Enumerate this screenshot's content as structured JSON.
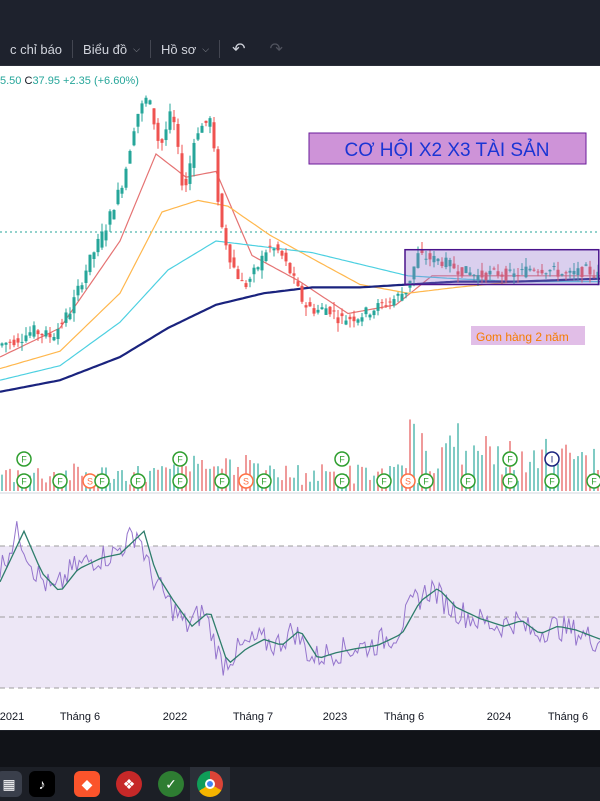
{
  "toolbar": {
    "items": [
      {
        "label": "c chỉ báo",
        "chevron": false
      },
      {
        "label": "Biểu đồ",
        "chevron": true
      },
      {
        "label": "Hồ sơ",
        "chevron": true
      }
    ],
    "undo_icon": "undo-icon",
    "redo_icon": "redo-icon"
  },
  "legend": {
    "prefix": "5.50",
    "close_label": "C",
    "close": "37.95",
    "change": "+2.35",
    "change_pct": "(+6.60%)"
  },
  "annotations": {
    "title_box": "CƠ HỘI X2 X3 TÀI SẢN",
    "accumulation_label": "Gom hàng 2 năm",
    "accumulation_range": [
      0.675,
      0.998
    ],
    "accumulation_price": [
      0.35,
      0.47
    ]
  },
  "chart_data": {
    "type": "candlestick",
    "x_ticks": [
      "2021",
      "Tháng 6",
      "2022",
      "Tháng 7",
      "2023",
      "Tháng 6",
      "2024",
      "Tháng 6"
    ],
    "price_path": [
      [
        0.0,
        0.14
      ],
      [
        0.03,
        0.16
      ],
      [
        0.06,
        0.19
      ],
      [
        0.09,
        0.17
      ],
      [
        0.12,
        0.26
      ],
      [
        0.15,
        0.42
      ],
      [
        0.18,
        0.55
      ],
      [
        0.21,
        0.72
      ],
      [
        0.23,
        0.93
      ],
      [
        0.25,
        1.0
      ],
      [
        0.27,
        0.82
      ],
      [
        0.29,
        0.95
      ],
      [
        0.31,
        0.66
      ],
      [
        0.33,
        0.88
      ],
      [
        0.355,
        0.92
      ],
      [
        0.37,
        0.57
      ],
      [
        0.39,
        0.42
      ],
      [
        0.41,
        0.34
      ],
      [
        0.43,
        0.4
      ],
      [
        0.45,
        0.48
      ],
      [
        0.47,
        0.46
      ],
      [
        0.49,
        0.38
      ],
      [
        0.51,
        0.28
      ],
      [
        0.53,
        0.26
      ],
      [
        0.55,
        0.27
      ],
      [
        0.57,
        0.23
      ],
      [
        0.6,
        0.24
      ],
      [
        0.63,
        0.27
      ],
      [
        0.66,
        0.3
      ],
      [
        0.68,
        0.33
      ],
      [
        0.7,
        0.45
      ],
      [
        0.72,
        0.44
      ],
      [
        0.74,
        0.43
      ],
      [
        0.77,
        0.4
      ],
      [
        0.8,
        0.38
      ],
      [
        0.83,
        0.39
      ],
      [
        0.86,
        0.38
      ],
      [
        0.89,
        0.41
      ],
      [
        0.92,
        0.4
      ],
      [
        0.95,
        0.38
      ],
      [
        0.98,
        0.4
      ],
      [
        1.0,
        0.38
      ]
    ],
    "ma_series": [
      {
        "color": "#e57373",
        "path": [
          [
            0.0,
            0.1
          ],
          [
            0.1,
            0.2
          ],
          [
            0.2,
            0.5
          ],
          [
            0.26,
            0.8
          ],
          [
            0.31,
            0.72
          ],
          [
            0.36,
            0.74
          ],
          [
            0.42,
            0.45
          ],
          [
            0.5,
            0.36
          ],
          [
            0.58,
            0.25
          ],
          [
            0.66,
            0.28
          ],
          [
            0.72,
            0.38
          ],
          [
            0.8,
            0.38
          ],
          [
            0.9,
            0.38
          ],
          [
            1.0,
            0.38
          ]
        ]
      },
      {
        "color": "#ffb74d",
        "path": [
          [
            0.0,
            0.06
          ],
          [
            0.1,
            0.12
          ],
          [
            0.2,
            0.32
          ],
          [
            0.27,
            0.6
          ],
          [
            0.33,
            0.64
          ],
          [
            0.38,
            0.62
          ],
          [
            0.45,
            0.52
          ],
          [
            0.52,
            0.44
          ],
          [
            0.6,
            0.35
          ],
          [
            0.68,
            0.32
          ],
          [
            0.76,
            0.34
          ],
          [
            0.86,
            0.36
          ],
          [
            1.0,
            0.37
          ]
        ]
      },
      {
        "color": "#4dd0e1",
        "path": [
          [
            0.0,
            0.02
          ],
          [
            0.1,
            0.07
          ],
          [
            0.2,
            0.22
          ],
          [
            0.28,
            0.4
          ],
          [
            0.36,
            0.5
          ],
          [
            0.44,
            0.48
          ],
          [
            0.52,
            0.46
          ],
          [
            0.6,
            0.42
          ],
          [
            0.68,
            0.38
          ],
          [
            0.76,
            0.37
          ],
          [
            0.86,
            0.36
          ],
          [
            1.0,
            0.36
          ]
        ]
      },
      {
        "color": "#1a237e",
        "path": [
          [
            0.0,
            -0.02
          ],
          [
            0.1,
            0.02
          ],
          [
            0.2,
            0.1
          ],
          [
            0.28,
            0.2
          ],
          [
            0.36,
            0.28
          ],
          [
            0.44,
            0.32
          ],
          [
            0.52,
            0.34
          ],
          [
            0.6,
            0.34
          ],
          [
            0.68,
            0.35
          ],
          [
            0.76,
            0.36
          ],
          [
            0.86,
            0.36
          ],
          [
            1.0,
            0.37
          ]
        ]
      }
    ],
    "rsi_path": [
      [
        0.0,
        0.72
      ],
      [
        0.03,
        0.92
      ],
      [
        0.06,
        0.7
      ],
      [
        0.09,
        0.6
      ],
      [
        0.12,
        0.72
      ],
      [
        0.16,
        0.78
      ],
      [
        0.19,
        0.8
      ],
      [
        0.23,
        0.92
      ],
      [
        0.25,
        0.7
      ],
      [
        0.28,
        0.55
      ],
      [
        0.31,
        0.42
      ],
      [
        0.34,
        0.5
      ],
      [
        0.37,
        0.22
      ],
      [
        0.4,
        0.3
      ],
      [
        0.43,
        0.35
      ],
      [
        0.46,
        0.32
      ],
      [
        0.49,
        0.4
      ],
      [
        0.52,
        0.25
      ],
      [
        0.55,
        0.28
      ],
      [
        0.58,
        0.3
      ],
      [
        0.62,
        0.32
      ],
      [
        0.66,
        0.38
      ],
      [
        0.69,
        0.55
      ],
      [
        0.72,
        0.62
      ],
      [
        0.75,
        0.52
      ],
      [
        0.79,
        0.46
      ],
      [
        0.83,
        0.42
      ],
      [
        0.86,
        0.45
      ],
      [
        0.89,
        0.38
      ],
      [
        0.92,
        0.42
      ],
      [
        0.95,
        0.4
      ],
      [
        1.0,
        0.34
      ]
    ],
    "events": [
      {
        "x": 0.04,
        "row": 1,
        "label": "F"
      },
      {
        "x": 0.04,
        "row": 2,
        "label": "F"
      },
      {
        "x": 0.1,
        "row": 2,
        "label": "F"
      },
      {
        "x": 0.15,
        "row": 2,
        "label": "S"
      },
      {
        "x": 0.17,
        "row": 2,
        "label": "F"
      },
      {
        "x": 0.23,
        "row": 2,
        "label": "F"
      },
      {
        "x": 0.3,
        "row": 1,
        "label": "F"
      },
      {
        "x": 0.3,
        "row": 2,
        "label": "F"
      },
      {
        "x": 0.37,
        "row": 2,
        "label": "F"
      },
      {
        "x": 0.41,
        "row": 2,
        "label": "S"
      },
      {
        "x": 0.44,
        "row": 2,
        "label": "F"
      },
      {
        "x": 0.57,
        "row": 1,
        "label": "F"
      },
      {
        "x": 0.57,
        "row": 2,
        "label": "F"
      },
      {
        "x": 0.64,
        "row": 2,
        "label": "F"
      },
      {
        "x": 0.68,
        "row": 2,
        "label": "S"
      },
      {
        "x": 0.71,
        "row": 2,
        "label": "F"
      },
      {
        "x": 0.78,
        "row": 2,
        "label": "F"
      },
      {
        "x": 0.85,
        "row": 1,
        "label": "F"
      },
      {
        "x": 0.85,
        "row": 2,
        "label": "F"
      },
      {
        "x": 0.92,
        "row": 1,
        "label": "I"
      },
      {
        "x": 0.92,
        "row": 2,
        "label": "F"
      },
      {
        "x": 0.99,
        "row": 2,
        "label": "F"
      }
    ]
  },
  "taskbar": {
    "icons": [
      "grid-icon",
      "tiktok-icon",
      "brave-icon",
      "bird-app-icon",
      "green-app-icon",
      "chrome-icon"
    ]
  }
}
